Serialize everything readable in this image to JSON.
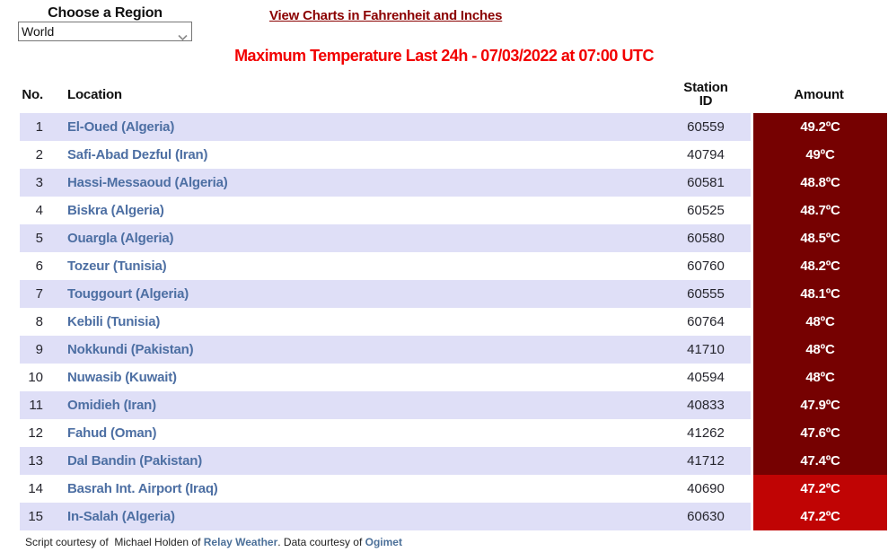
{
  "region_selector": {
    "label": "Choose a Region",
    "selected": "World"
  },
  "links": {
    "view_charts": "View Charts in Fahrenheit and Inches"
  },
  "title": "Maximum Temperature Last 24h - 07/03/2022 at 07:00 UTC",
  "table": {
    "headers": {
      "no": "No.",
      "location": "Location",
      "station_line1": "Station",
      "station_line2": "ID",
      "amount": "Amount"
    },
    "rows": [
      {
        "no": "1",
        "location": "El-Oued (Algeria)",
        "station_id": "60559",
        "amount": "49.2ºC",
        "amount_bg": "#760101"
      },
      {
        "no": "2",
        "location": "Safi-Abad Dezful (Iran)",
        "station_id": "40794",
        "amount": "49ºC",
        "amount_bg": "#760101"
      },
      {
        "no": "3",
        "location": "Hassi-Messaoud (Algeria)",
        "station_id": "60581",
        "amount": "48.8ºC",
        "amount_bg": "#760101"
      },
      {
        "no": "4",
        "location": "Biskra (Algeria)",
        "station_id": "60525",
        "amount": "48.7ºC",
        "amount_bg": "#760101"
      },
      {
        "no": "5",
        "location": "Ouargla (Algeria)",
        "station_id": "60580",
        "amount": "48.5ºC",
        "amount_bg": "#760101"
      },
      {
        "no": "6",
        "location": "Tozeur (Tunisia)",
        "station_id": "60760",
        "amount": "48.2ºC",
        "amount_bg": "#760101"
      },
      {
        "no": "7",
        "location": "Touggourt (Algeria)",
        "station_id": "60555",
        "amount": "48.1ºC",
        "amount_bg": "#760101"
      },
      {
        "no": "8",
        "location": "Kebili (Tunisia)",
        "station_id": "60764",
        "amount": "48ºC",
        "amount_bg": "#760101"
      },
      {
        "no": "9",
        "location": "Nokkundi (Pakistan)",
        "station_id": "41710",
        "amount": "48ºC",
        "amount_bg": "#760101"
      },
      {
        "no": "10",
        "location": "Nuwasib (Kuwait)",
        "station_id": "40594",
        "amount": "48ºC",
        "amount_bg": "#760101"
      },
      {
        "no": "11",
        "location": "Omidieh (Iran)",
        "station_id": "40833",
        "amount": "47.9ºC",
        "amount_bg": "#760101"
      },
      {
        "no": "12",
        "location": "Fahud (Oman)",
        "station_id": "41262",
        "amount": "47.6ºC",
        "amount_bg": "#760101"
      },
      {
        "no": "13",
        "location": "Dal Bandin (Pakistan)",
        "station_id": "41712",
        "amount": "47.4ºC",
        "amount_bg": "#760101"
      },
      {
        "no": "14",
        "location": "Basrah Int. Airport (Iraq)",
        "station_id": "40690",
        "amount": "47.2ºC",
        "amount_bg": "#C00404"
      },
      {
        "no": "15",
        "location": "In-Salah (Algeria)",
        "station_id": "60630",
        "amount": "47.2ºC",
        "amount_bg": "#C00404"
      }
    ]
  },
  "footer": {
    "part1": "Script courtesy of  Michael Holden of ",
    "link1": "Relay Weather",
    "part2": ". Data courtesy of ",
    "link2": "Ogimet"
  },
  "colors": {
    "stripe": "#DFDFF7",
    "amount_dark": "#760101",
    "amount_bright": "#C00404",
    "location_blue": "#4D6FA3",
    "title_red": "#F20000",
    "charts_link": "#8B0000",
    "footer_link": "#4C7099",
    "text_dark": "#26262E"
  }
}
